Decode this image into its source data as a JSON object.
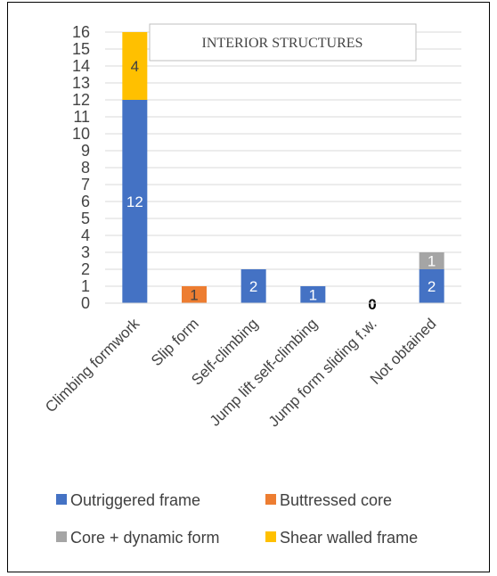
{
  "chart_data": {
    "type": "bar",
    "stacked": true,
    "title": "INTERIOR STRUCTURES",
    "categories": [
      "Climbing formwork",
      "Slip form",
      "Self-climbing",
      "Jump lift self-climbing",
      "Jump form sliding f.w.",
      "Not obtained"
    ],
    "series": [
      {
        "name": "Outriggered frame",
        "color": "#4472C4",
        "values": [
          12,
          0,
          2,
          1,
          0,
          2
        ],
        "labels": [
          "12",
          "",
          "2",
          "1",
          "",
          "2"
        ],
        "label_color": "#ffffff"
      },
      {
        "name": "Buttressed core",
        "color": "#ED7D31",
        "values": [
          0,
          1,
          0,
          0,
          0,
          0
        ],
        "labels": [
          "",
          "1",
          "",
          "",
          "",
          ""
        ],
        "label_color": "#404040"
      },
      {
        "name": "Core + dynamic form",
        "color": "#A5A5A5",
        "values": [
          0,
          0,
          0,
          0,
          0,
          1
        ],
        "labels": [
          "",
          "",
          "",
          "",
          "",
          "1"
        ],
        "label_color": "#ffffff"
      },
      {
        "name": "Shear walled frame",
        "color": "#FFC000",
        "values": [
          4,
          0,
          0,
          0,
          0,
          0
        ],
        "labels": [
          "4",
          "",
          "",
          "",
          "",
          ""
        ],
        "label_color": "#404040"
      }
    ],
    "zero_labels": [
      "",
      "",
      "",
      "",
      "0",
      ""
    ],
    "ylim": [
      0,
      16
    ],
    "yticks": [
      "0",
      "1",
      "2",
      "3",
      "4",
      "5",
      "6",
      "7",
      "8",
      "9",
      "10",
      "11",
      "12",
      "13",
      "14",
      "15",
      "16"
    ],
    "grid": true,
    "legend_position": "bottom"
  }
}
